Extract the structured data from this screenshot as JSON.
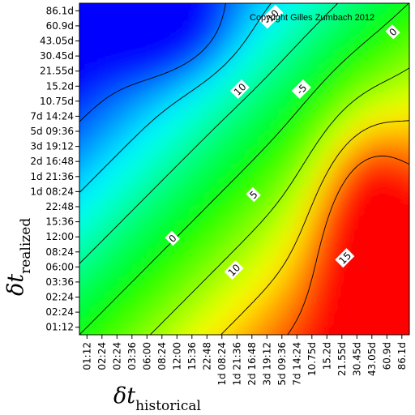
{
  "chart_data": {
    "type": "heatmap",
    "xlabel": "δt",
    "xlabel_sub": "historical",
    "ylabel": "δt",
    "ylabel_sub": "realized",
    "annotation": "Copyright Gilles Zumbach 2012",
    "x_ticks": [
      "01:12",
      "02:24",
      "02:24",
      "03:36",
      "06:00",
      "08:24",
      "12:00",
      "15:36",
      "22:48",
      "1d 08:24",
      "1d 21:36",
      "2d 16:48",
      "3d 19:12",
      "5d 09:36",
      "7d 14:24",
      "10.75d",
      "15.2d",
      "21.55d",
      "30.45d",
      "43.05d",
      "60.9d",
      "86.1d"
    ],
    "y_ticks": [
      "86.1d",
      "60.9d",
      "43.05d",
      "30.45d",
      "21.55d",
      "15.2d",
      "10.75d",
      "7d 14:24",
      "5d 09:36",
      "3d 19:12",
      "2d 16:48",
      "1d 21:36",
      "1d 08:24",
      "22:48",
      "15:36",
      "12:00",
      "08:24",
      "06:00",
      "03:36",
      "02:24",
      "02:24",
      "01:12"
    ],
    "colorscale": [
      "#0000ff",
      "#00ffff",
      "#00ff00",
      "#ffff00",
      "#ff0000"
    ],
    "value_range": [
      -18,
      18
    ],
    "contour_levels": [
      -15,
      -10,
      -5,
      0,
      5,
      10,
      15
    ],
    "contour_labels": [
      {
        "text": "-10",
        "x_index": 12.3,
        "y_index": 20.6
      },
      {
        "text": "10",
        "x_index": 10.2,
        "y_index": 15.8
      },
      {
        "text": "-5",
        "x_index": 14.3,
        "y_index": 15.8
      },
      {
        "text": "0",
        "x_index": 20.4,
        "y_index": 19.6
      },
      {
        "text": "5",
        "x_index": 11.1,
        "y_index": 8.8
      },
      {
        "text": "0",
        "x_index": 5.7,
        "y_index": 5.9
      },
      {
        "text": "10",
        "x_index": 9.8,
        "y_index": 3.8
      },
      {
        "text": "15",
        "x_index": 17.2,
        "y_index": 4.6
      }
    ]
  }
}
